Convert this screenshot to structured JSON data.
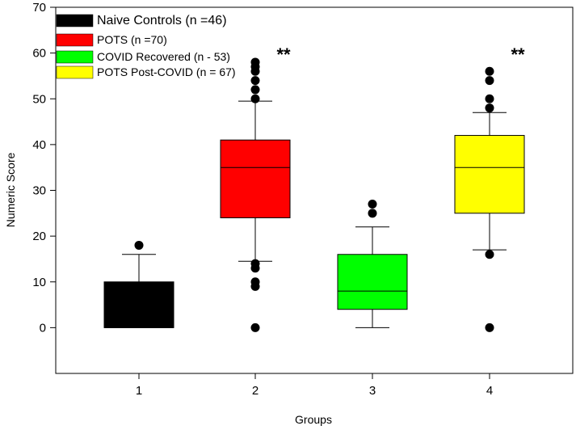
{
  "chart_data": {
    "type": "box",
    "xlabel": "Groups",
    "ylabel": "Numeric Score",
    "ylim": [
      -10,
      70
    ],
    "yticks": [
      0,
      10,
      20,
      30,
      40,
      50,
      60,
      70
    ],
    "categories": [
      "1",
      "2",
      "3",
      "4"
    ],
    "legend_position": "top-left",
    "series": [
      {
        "name": "Naive Controls (n =46)",
        "category": "1",
        "color": "#000000",
        "whisker_low": 0,
        "q1": 0,
        "median": 0,
        "q3": 10,
        "whisker_high": 16,
        "outliers": [
          18
        ]
      },
      {
        "name": "POTS (n =70)",
        "category": "2",
        "color": "#ff0000",
        "whisker_low": 14.5,
        "q1": 24,
        "median": 35,
        "q3": 41,
        "whisker_high": 49.5,
        "outliers": [
          0,
          9,
          10,
          13,
          14,
          50,
          52,
          54,
          56,
          57,
          58
        ],
        "annotation": "**"
      },
      {
        "name": "COVID Recovered (n - 53)",
        "category": "3",
        "color": "#00ff00",
        "whisker_low": 0,
        "q1": 4,
        "median": 8,
        "q3": 16,
        "whisker_high": 22,
        "outliers": [
          25,
          27
        ]
      },
      {
        "name": "POTS Post-COVID (n = 67)",
        "category": "4",
        "color": "#ffff00",
        "whisker_low": 17,
        "q1": 25,
        "median": 35,
        "q3": 42,
        "whisker_high": 47,
        "outliers": [
          0,
          16,
          48,
          50,
          54,
          56
        ],
        "annotation": "**"
      }
    ]
  }
}
